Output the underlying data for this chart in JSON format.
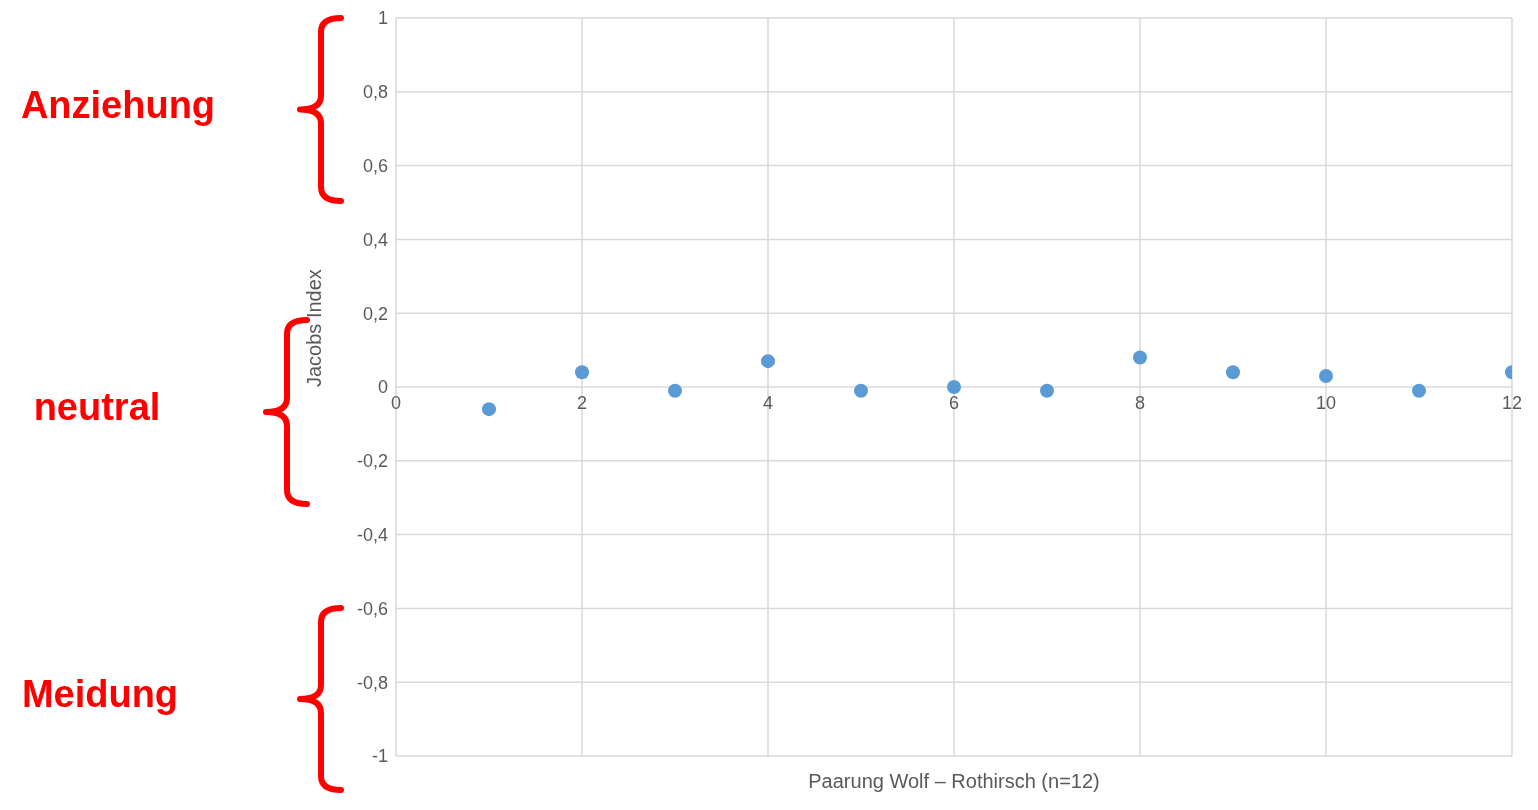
{
  "chart_data": {
    "type": "scatter",
    "xlabel": "Paarung Wolf – Rothirsch (n=12)",
    "ylabel": "Jacobs Index",
    "x": [
      1,
      2,
      3,
      4,
      5,
      6,
      7,
      8,
      9,
      10,
      11,
      12
    ],
    "series": [
      {
        "color": "#5b9bd5",
        "values": [
          -0.06,
          0.04,
          -0.01,
          0.07,
          -0.01,
          0,
          -0.01,
          0.08,
          0.04,
          0.03,
          -0.01,
          0.04
        ]
      }
    ],
    "xlim": [
      0,
      12
    ],
    "xticks": [
      0,
      2,
      4,
      6,
      8,
      10,
      12
    ],
    "ylim": [
      -1,
      1
    ],
    "yticks": [
      {
        "value": -1,
        "label": "-1"
      },
      {
        "value": -0.8,
        "label": "-0,8"
      },
      {
        "value": -0.6,
        "label": "-0,6"
      },
      {
        "value": -0.4,
        "label": "-0,4"
      },
      {
        "value": -0.2,
        "label": "-0,2"
      },
      0,
      {
        "value": 0.2,
        "label": "0,2"
      },
      {
        "value": 0.4,
        "label": "0,4"
      },
      {
        "value": 0.6,
        "label": "0,6"
      },
      {
        "value": 0.8,
        "label": "0,8"
      },
      1
    ],
    "grid": true,
    "marker": "circle",
    "annotations": [
      "Anziehung",
      "neutral",
      "Meidung"
    ]
  }
}
